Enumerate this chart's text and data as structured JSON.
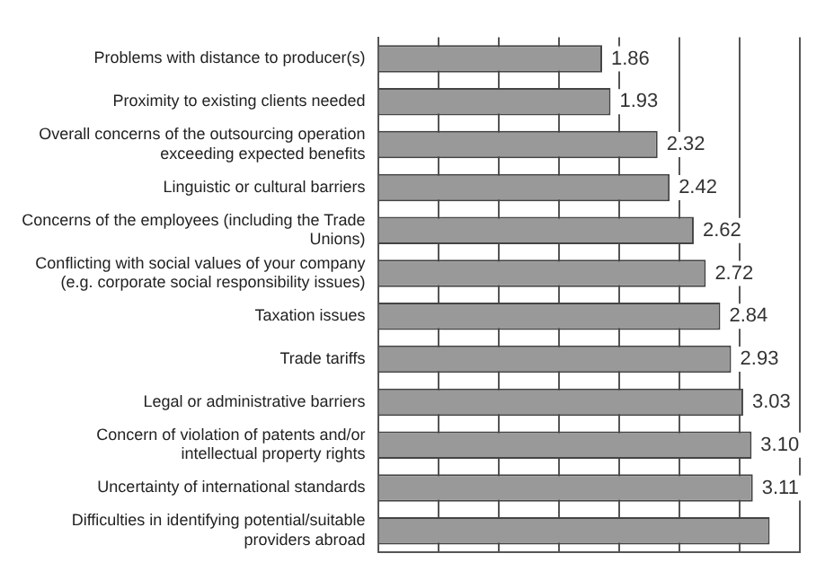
{
  "chart_data": {
    "type": "bar",
    "orientation": "horizontal",
    "categories": [
      "Problems with distance to producer(s)",
      "Proximity to existing clients needed",
      "Overall concerns of the outsourcing operation exceeding expected benefits",
      "Linguistic or cultural barriers",
      "Concerns of the employees (including the Trade Unions)",
      "Conflicting with social values of your company (e.g. corporate social responsibility issues)",
      "Taxation issues",
      "Trade tariffs",
      "Legal or administrative barriers",
      "Concern of violation of patents and/or intellectual property rights",
      "Uncertainty of international standards",
      "Difficulties in identifying potential/suitable providers abroad"
    ],
    "values": [
      1.86,
      1.93,
      2.32,
      2.42,
      2.62,
      2.72,
      2.84,
      2.93,
      3.03,
      3.1,
      3.11,
      3.25
    ],
    "value_labels": [
      "1.86",
      "1.93",
      "2.32",
      "2.42",
      "2.62",
      "2.72",
      "2.84",
      "2.93",
      "3.03",
      "3.10",
      "3.11",
      null
    ],
    "color": "#999999",
    "xlim": [
      0,
      3.5
    ],
    "xticks": [
      {
        "value": 0,
        "label": null
      },
      {
        "value": 0.5,
        "label": null
      },
      {
        "value": 1,
        "label": null
      },
      {
        "value": 1.5,
        "label": null
      },
      {
        "value": 2,
        "label": null
      },
      {
        "value": 2.5,
        "label": null
      },
      {
        "value": 3,
        "label": null
      },
      {
        "value": 3.5,
        "label": null
      }
    ],
    "grid": "x",
    "tick_labels": "y",
    "legend": false
  }
}
